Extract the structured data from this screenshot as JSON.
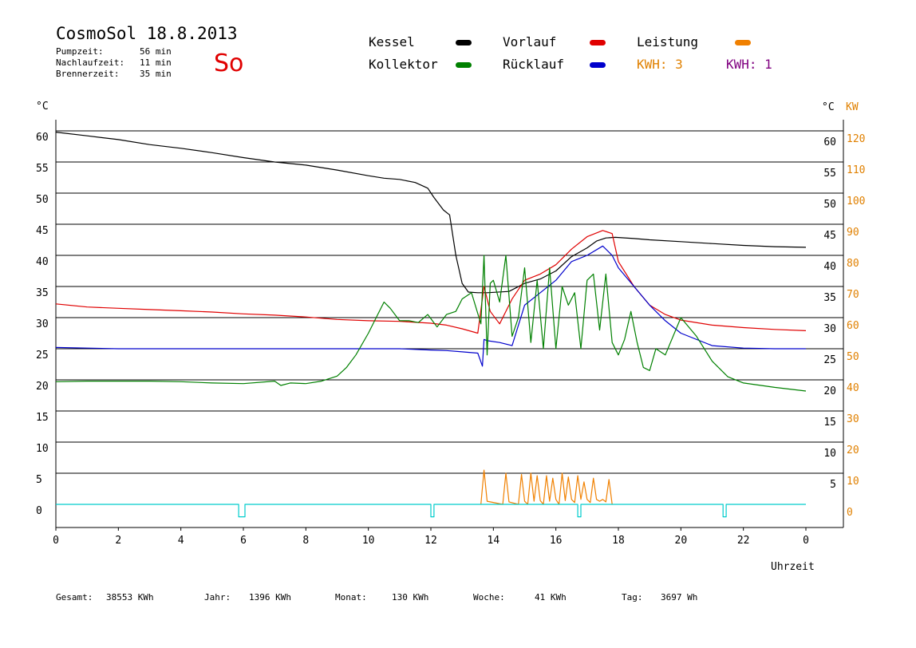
{
  "header": {
    "title": "CosmoSol 18.8.2013",
    "day": "So",
    "stats": [
      {
        "label": "Pumpzeit:",
        "value": "56 min"
      },
      {
        "label": "Nachlaufzeit:",
        "value": "11 min"
      },
      {
        "label": "Brennerzeit:",
        "value": "35 min"
      }
    ]
  },
  "legend": {
    "kessel": "Kessel",
    "kollektor": "Kollektor",
    "vorlauf": "Vorlauf",
    "ruecklauf": "Rücklauf",
    "leistung": "Leistung",
    "kwh_left": "KWH: 3",
    "kwh_right": "KWH: 1"
  },
  "colors": {
    "kessel": "#000000",
    "kollektor": "#008000",
    "vorlauf": "#e00000",
    "ruecklauf": "#0000cc",
    "leistung": "#f08000",
    "kwh_right": "#800080",
    "pump": "#00cccc",
    "kw_axis": "#e08000"
  },
  "axes": {
    "y_left_unit": "°C",
    "y_right_unit": "°C",
    "y_right2_unit": "KW",
    "x_label": "Uhrzeit"
  },
  "footer": {
    "gesamt_label": "Gesamt:",
    "gesamt_value": "38553 KWh",
    "jahr_label": "Jahr:",
    "jahr_value": "1396 KWh",
    "monat_label": "Monat:",
    "monat_value": "130 KWh",
    "woche_label": "Woche:",
    "woche_value": "41 KWh",
    "tag_label": "Tag:",
    "tag_value": "3697 Wh"
  },
  "chart_data": {
    "type": "line",
    "x_ticks": [
      "0",
      "2",
      "4",
      "6",
      "8",
      "10",
      "12",
      "14",
      "16",
      "18",
      "20",
      "22",
      "0"
    ],
    "x_range": [
      0,
      24
    ],
    "y_ticks_left": [
      "60",
      "55",
      "50",
      "45",
      "40",
      "35",
      "30",
      "25",
      "20",
      "15",
      "10",
      "5",
      "0"
    ],
    "y_ticks_right": [
      "60",
      "55",
      "50",
      "45",
      "40",
      "35",
      "30",
      "25",
      "20",
      "15",
      "10",
      "5"
    ],
    "y_ticks_kw": [
      "120",
      "110",
      "100",
      "90",
      "80",
      "70",
      "60",
      "50",
      "40",
      "30",
      "20",
      "10",
      "0"
    ],
    "ylim": [
      0,
      60
    ],
    "series": [
      {
        "name": "Kessel",
        "color": "#000000",
        "x": [
          0,
          1,
          2,
          3,
          4,
          5,
          6,
          7,
          8,
          9,
          10,
          10.5,
          11,
          11.5,
          11.9,
          12.1,
          12.4,
          12.6,
          12.8,
          13,
          13.2,
          13.5,
          13.8,
          14.5,
          15,
          15.5,
          16,
          16.5,
          17,
          17.3,
          17.6,
          17.9,
          18.5,
          19,
          20,
          21,
          22,
          23,
          24
        ],
        "y": [
          59.8,
          59.2,
          58.6,
          57.8,
          57.2,
          56.5,
          55.7,
          55,
          54.5,
          53.7,
          52.8,
          52.4,
          52.2,
          51.7,
          50.8,
          49.3,
          47.3,
          46.5,
          40,
          35.5,
          34.1,
          34,
          34,
          34.2,
          35.5,
          36.2,
          37.5,
          39.8,
          41.2,
          42.3,
          42.8,
          42.9,
          42.7,
          42.5,
          42.2,
          41.9,
          41.6,
          41.4,
          41.3
        ]
      },
      {
        "name": "Vorlauf",
        "color": "#e00000",
        "x": [
          0,
          1,
          2,
          3,
          4,
          5,
          6,
          7,
          8,
          9,
          10,
          11,
          12,
          12.5,
          13,
          13.5,
          13.7,
          13.9,
          14.2,
          14.6,
          15,
          15.5,
          16,
          16.5,
          17,
          17.5,
          17.8,
          18,
          18.5,
          19,
          19.5,
          20,
          21,
          22,
          23,
          24
        ],
        "y": [
          32.2,
          31.7,
          31.5,
          31.3,
          31.1,
          30.9,
          30.6,
          30.4,
          30.1,
          29.7,
          29.5,
          29.4,
          29.1,
          28.8,
          28.2,
          27.5,
          35,
          31,
          29,
          33,
          36,
          37,
          38.5,
          41,
          43,
          44,
          43.5,
          39,
          35,
          32,
          30.5,
          29.6,
          28.8,
          28.4,
          28.1,
          27.9
        ]
      },
      {
        "name": "Rücklauf",
        "color": "#0000cc",
        "x": [
          0,
          1,
          2,
          3,
          4,
          5,
          6,
          7,
          8,
          9,
          10,
          11,
          12,
          12.5,
          13,
          13.5,
          13.65,
          13.7,
          13.8,
          14.2,
          14.6,
          15,
          15.5,
          16,
          16.5,
          17,
          17.5,
          17.8,
          18,
          18.5,
          19,
          19.5,
          20,
          21,
          22,
          23,
          24
        ],
        "y": [
          25.2,
          25.1,
          25,
          25,
          25,
          25,
          25,
          25,
          25,
          25,
          25,
          25,
          24.8,
          24.7,
          24.5,
          24.3,
          22.2,
          26.5,
          26.3,
          26,
          25.5,
          32,
          34,
          36,
          39,
          40,
          41.5,
          40,
          38,
          35,
          32,
          29.5,
          27.5,
          25.5,
          25.1,
          25,
          25
        ]
      },
      {
        "name": "Kollektor",
        "color": "#008000",
        "x": [
          0,
          1,
          2,
          3,
          4,
          5,
          6,
          7,
          7.2,
          7.5,
          8,
          8.5,
          9,
          9.3,
          9.6,
          10,
          10.3,
          10.5,
          10.7,
          11,
          11.3,
          11.6,
          11.9,
          12.2,
          12.5,
          12.8,
          13,
          13.3,
          13.6,
          13.7,
          13.8,
          13.9,
          14,
          14.2,
          14.4,
          14.6,
          14.8,
          15,
          15.2,
          15.4,
          15.6,
          15.8,
          16,
          16.2,
          16.4,
          16.6,
          16.8,
          17,
          17.2,
          17.4,
          17.6,
          17.8,
          18,
          18.2,
          18.4,
          18.6,
          18.8,
          19,
          19.2,
          19.5,
          20,
          20.5,
          21,
          21.5,
          22,
          23,
          24
        ],
        "y": [
          19.7,
          19.8,
          19.8,
          19.8,
          19.7,
          19.5,
          19.4,
          19.8,
          19.1,
          19.5,
          19.4,
          19.8,
          20.6,
          22,
          24,
          27.5,
          30.5,
          32.5,
          31.5,
          29.5,
          29.5,
          29.2,
          30.5,
          28.5,
          30.5,
          31,
          33,
          34,
          29,
          40,
          24,
          35.5,
          36,
          32.5,
          40,
          27,
          30,
          38,
          26,
          36,
          25,
          38,
          25,
          35,
          32,
          34,
          25,
          36,
          37,
          28,
          37,
          26,
          24,
          26.5,
          31,
          26,
          22,
          21.5,
          25,
          24,
          30,
          27,
          23,
          20.5,
          19.5,
          18.8,
          18.2
        ]
      },
      {
        "name": "Leistung",
        "color": "#f08000",
        "x": [
          13.6,
          13.7,
          13.8,
          14.3,
          14.4,
          14.5,
          14.8,
          14.9,
          15.0,
          15.1,
          15.2,
          15.3,
          15.4,
          15.5,
          15.6,
          15.7,
          15.8,
          15.9,
          16.0,
          16.1,
          16.2,
          16.3,
          16.4,
          16.5,
          16.6,
          16.7,
          16.8,
          16.9,
          17.0,
          17.1,
          17.2,
          17.3,
          17.4,
          17.5,
          17.6,
          17.7,
          17.8
        ],
        "y": [
          0,
          5.5,
          0.5,
          0,
          5,
          0.4,
          0,
          4.8,
          0.5,
          0,
          5,
          0.5,
          4.6,
          0.6,
          0,
          4.6,
          0.5,
          4.2,
          0.8,
          0,
          5,
          0.6,
          4.4,
          0.8,
          0.3,
          4.6,
          0.8,
          3.6,
          0.8,
          0.3,
          4.2,
          0.8,
          0.5,
          0.8,
          0.4,
          4,
          0
        ]
      },
      {
        "name": "Pumpe",
        "color": "#00cccc",
        "x": [
          0,
          5.85,
          5.85,
          6.05,
          6.05,
          12.0,
          12.0,
          12.1,
          12.1,
          16.7,
          16.7,
          16.8,
          16.8,
          21.35,
          21.35,
          21.45,
          21.45,
          24
        ],
        "y": [
          0,
          0,
          -2,
          -2,
          0,
          0,
          -2,
          -2,
          0,
          0,
          -2,
          -2,
          0,
          0,
          -2,
          -2,
          0,
          0
        ]
      }
    ]
  }
}
